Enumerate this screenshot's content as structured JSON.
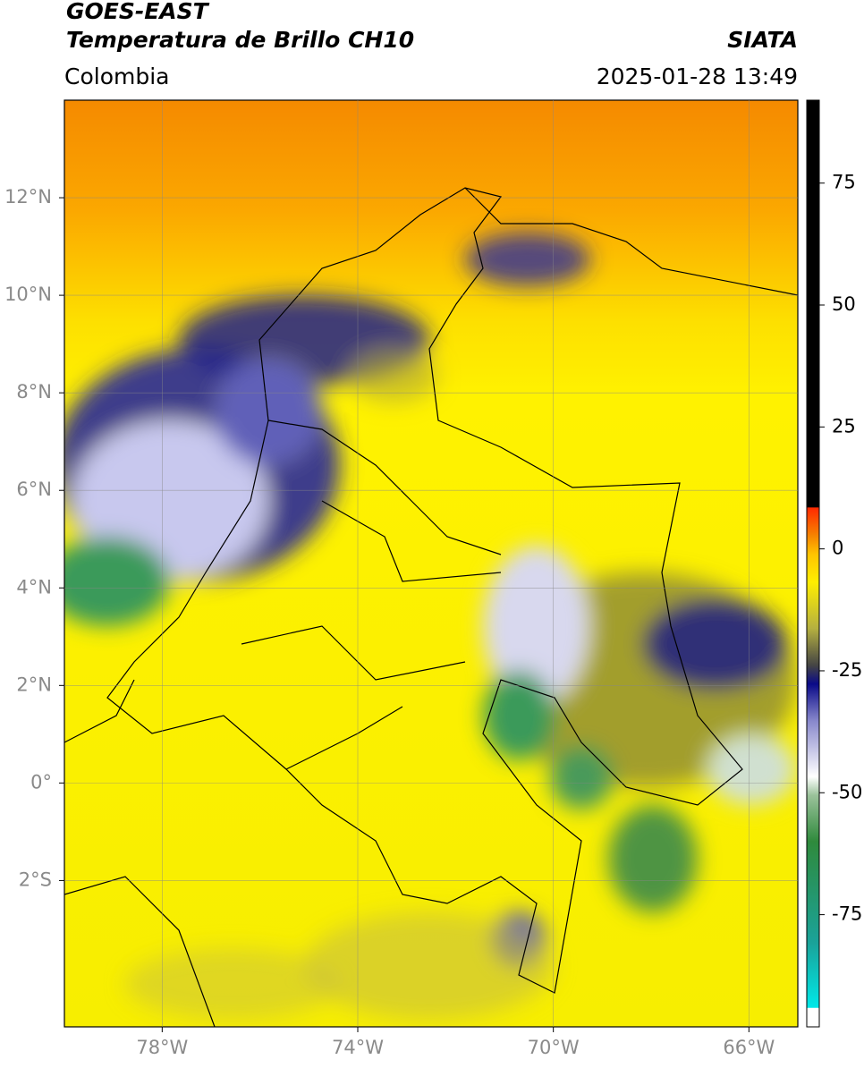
{
  "header": {
    "title": "GOES-EAST",
    "subtitle": "Temperatura de Brillo CH10",
    "source": "SIATA",
    "region": "Colombia",
    "timestamp": "2025-01-28 13:49"
  },
  "map": {
    "lon_range": [
      -80,
      -65
    ],
    "lat_range": [
      -5,
      14
    ],
    "lon_ticks": [
      {
        "value": -78,
        "label": "78°W"
      },
      {
        "value": -74,
        "label": "74°W"
      },
      {
        "value": -70,
        "label": "70°W"
      },
      {
        "value": -66,
        "label": "66°W"
      }
    ],
    "lat_ticks": [
      {
        "value": 12,
        "label": "12°N"
      },
      {
        "value": 10,
        "label": "10°N"
      },
      {
        "value": 8,
        "label": "8°N"
      },
      {
        "value": 6,
        "label": "6°N"
      },
      {
        "value": 4,
        "label": "4°N"
      },
      {
        "value": 2,
        "label": "2°N"
      },
      {
        "value": 0,
        "label": "0°"
      },
      {
        "value": -2,
        "label": "2°S"
      }
    ]
  },
  "colorbar": {
    "range": [
      -98,
      92
    ],
    "ticks": [
      75,
      50,
      25,
      0,
      -25,
      -50,
      -75
    ]
  }
}
